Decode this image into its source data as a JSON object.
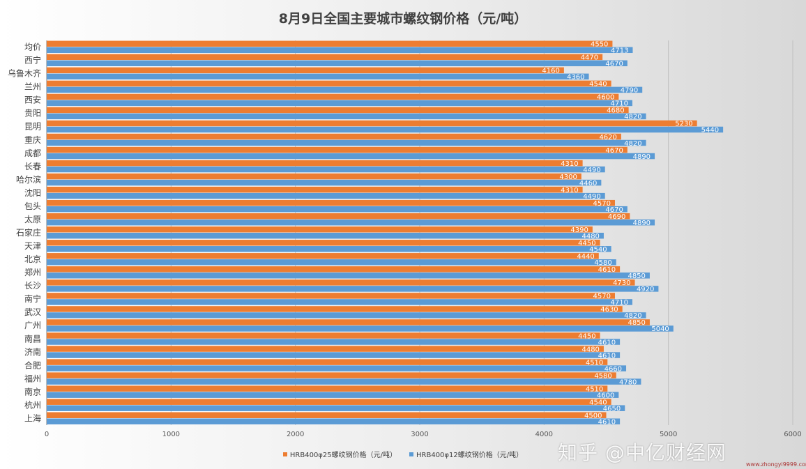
{
  "chart_data": {
    "type": "bar",
    "orientation": "horizontal",
    "title": "8月9日全国主要城市螺纹钢价格（元/吨）",
    "categories": [
      "均价",
      "西宁",
      "乌鲁木齐",
      "兰州",
      "西安",
      "贵阳",
      "昆明",
      "重庆",
      "成都",
      "长春",
      "哈尔滨",
      "沈阳",
      "包头",
      "太原",
      "石家庄",
      "天津",
      "北京",
      "郑州",
      "长沙",
      "南宁",
      "武汉",
      "广州",
      "南昌",
      "济南",
      "合肥",
      "福州",
      "南京",
      "杭州",
      "上海"
    ],
    "series": [
      {
        "name": "HRB400φ25螺纹钢价格（元/吨）",
        "color": "#ED7D31",
        "values": [
          4550,
          4470,
          4160,
          4540,
          4600,
          4680,
          5230,
          4620,
          4670,
          4310,
          4300,
          4310,
          4570,
          4690,
          4390,
          4450,
          4440,
          4610,
          4730,
          4570,
          4630,
          4850,
          4450,
          4480,
          4510,
          4580,
          4510,
          4540,
          4500
        ]
      },
      {
        "name": "HRB400φ12螺纹钢价格（元/吨）",
        "color": "#5B9BD5",
        "values": [
          4713,
          4670,
          4360,
          4790,
          4710,
          4820,
          5440,
          4820,
          4890,
          4490,
          4460,
          4490,
          4670,
          4890,
          4480,
          4540,
          4580,
          4850,
          4920,
          4710,
          4820,
          5040,
          4610,
          4610,
          4660,
          4780,
          4600,
          4650,
          4610
        ]
      }
    ],
    "xlim": [
      0,
      6000
    ],
    "xticks": [
      "0",
      "1000",
      "2000",
      "3000",
      "4000",
      "5000",
      "6000"
    ],
    "grid": true,
    "legend": "bottom"
  },
  "watermark": {
    "text": "知乎 @中亿财经网",
    "url_text": "www.zhongyi9999.com"
  }
}
